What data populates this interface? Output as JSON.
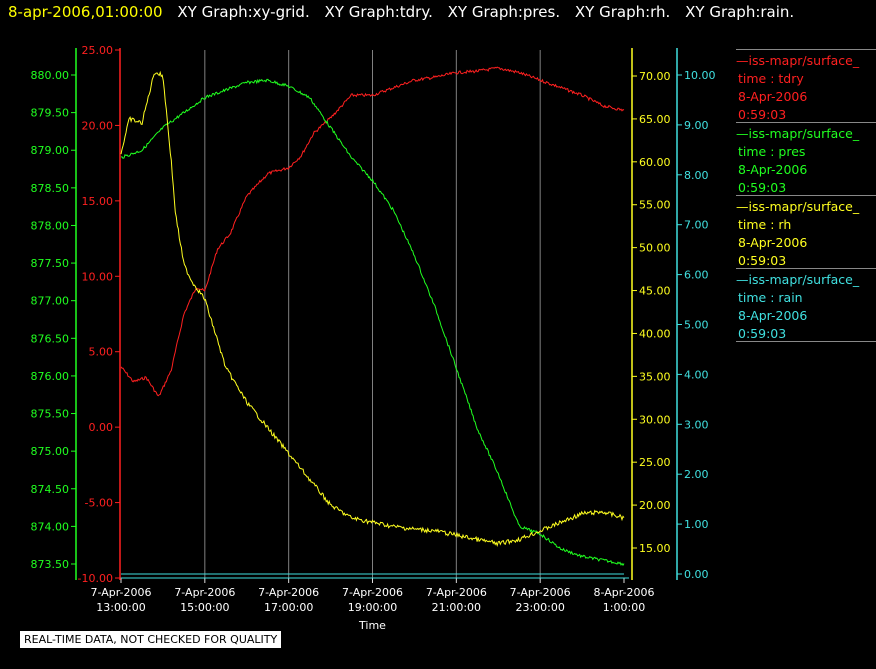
{
  "header": {
    "timestamp": "8-apr-2006,01:00:00",
    "titles": [
      "XY Graph:xy-grid.",
      "XY Graph:tdry.",
      "XY Graph:pres.",
      "XY Graph:rh.",
      "XY Graph:rain."
    ]
  },
  "legend": [
    {
      "name": "—iss-mapr/surface_",
      "field": "time : tdry",
      "date": "8-Apr-2006",
      "time": "0:59:03",
      "color": "#ff2020"
    },
    {
      "name": "—iss-mapr/surface_",
      "field": "time : pres",
      "date": "8-Apr-2006",
      "time": "0:59:03",
      "color": "#20ff20"
    },
    {
      "name": "—iss-mapr/surface_",
      "field": "time : rh",
      "date": "8-Apr-2006",
      "time": "0:59:03",
      "color": "#ffff20"
    },
    {
      "name": "—iss-mapr/surface_",
      "field": "time : rain",
      "date": "8-Apr-2006",
      "time": "0:59:03",
      "color": "#40e0e0"
    }
  ],
  "footer": "REAL-TIME DATA, NOT CHECKED FOR QUALITY",
  "chart_data": {
    "type": "line",
    "xlabel": "Time",
    "x_ticks": [
      [
        "7-Apr-2006",
        "13:00:00"
      ],
      [
        "7-Apr-2006",
        "15:00:00"
      ],
      [
        "7-Apr-2006",
        "17:00:00"
      ],
      [
        "7-Apr-2006",
        "19:00:00"
      ],
      [
        "7-Apr-2006",
        "21:00:00"
      ],
      [
        "7-Apr-2006",
        "23:00:00"
      ],
      [
        "8-Apr-2006",
        "1:00:00"
      ]
    ],
    "xlim": [
      "2006-04-07 13:00",
      "2006-04-08 01:00"
    ],
    "grid": "vertical",
    "axes": {
      "tdry": {
        "color": "#ff2020",
        "ylim": [
          -10,
          25
        ],
        "ticks": [
          "25.00",
          "20.00",
          "15.00",
          "10.00",
          "5.00",
          "0.00",
          "-5.00",
          "-10.00"
        ]
      },
      "pres": {
        "color": "#20ff20",
        "ylim": [
          873.3,
          880.0
        ],
        "ticks": [
          "880.00",
          "879.50",
          "879.00",
          "878.50",
          "878.00",
          "877.50",
          "877.00",
          "876.50",
          "876.00",
          "875.50",
          "875.00",
          "874.50",
          "874.00",
          "873.50"
        ]
      },
      "rh": {
        "color": "#ffff20",
        "ylim": [
          12.5,
          71.0
        ],
        "ticks": [
          "70.00",
          "65.00",
          "60.00",
          "55.00",
          "50.00",
          "45.00",
          "40.00",
          "35.00",
          "30.00",
          "25.00",
          "20.00",
          "15.00"
        ]
      },
      "rain": {
        "color": "#40e0e0",
        "ylim": [
          0,
          10.0
        ],
        "ticks": [
          "10.00",
          "9.00",
          "8.00",
          "7.00",
          "6.00",
          "5.00",
          "4.00",
          "3.00",
          "2.00",
          "1.00",
          "0.00"
        ]
      }
    },
    "series": [
      {
        "name": "tdry",
        "x_hours": [
          13.0,
          13.3,
          13.6,
          13.9,
          14.2,
          14.5,
          14.8,
          15.0,
          15.3,
          15.6,
          16.0,
          16.5,
          17.0,
          17.3,
          17.6,
          18.0,
          18.5,
          19.0,
          19.5,
          20.0,
          20.5,
          21.0,
          21.5,
          22.0,
          22.5,
          23.0,
          23.5,
          24.0,
          24.5,
          25.0
        ],
        "y": [
          4.0,
          3.0,
          3.3,
          2.0,
          3.8,
          7.5,
          9.3,
          9.0,
          11.8,
          12.8,
          15.3,
          16.8,
          17.2,
          18.0,
          19.5,
          20.5,
          22.0,
          22.0,
          22.5,
          23.0,
          23.2,
          23.5,
          23.6,
          23.8,
          23.5,
          23.0,
          22.5,
          22.0,
          21.3,
          21.0
        ]
      },
      {
        "name": "pres",
        "x_hours": [
          13.0,
          13.5,
          14.0,
          14.5,
          15.0,
          15.5,
          16.0,
          16.5,
          17.0,
          17.5,
          18.0,
          18.5,
          19.0,
          19.5,
          20.0,
          20.5,
          21.0,
          21.5,
          22.0,
          22.5,
          23.0,
          23.5,
          24.0,
          24.5,
          25.0
        ],
        "y": [
          878.9,
          879.0,
          879.3,
          879.5,
          879.7,
          879.8,
          879.9,
          879.93,
          879.85,
          879.7,
          879.3,
          878.9,
          878.6,
          878.2,
          877.6,
          876.9,
          876.1,
          875.3,
          874.7,
          874.0,
          873.9,
          873.7,
          873.6,
          873.55,
          873.5
        ]
      },
      {
        "name": "rh",
        "x_hours": [
          13.0,
          13.2,
          13.5,
          13.8,
          14.0,
          14.2,
          14.3,
          14.5,
          14.7,
          15.0,
          15.5,
          16.0,
          16.5,
          17.0,
          17.5,
          18.0,
          18.5,
          19.0,
          19.5,
          20.0,
          20.5,
          21.0,
          21.5,
          22.0,
          22.5,
          23.0,
          23.5,
          24.0,
          24.5,
          25.0
        ],
        "y": [
          61.0,
          65.0,
          64.5,
          70.5,
          70.0,
          60.0,
          54.0,
          48.0,
          46.0,
          44.0,
          36.0,
          32.0,
          29.0,
          26.0,
          23.0,
          20.0,
          18.5,
          18.0,
          17.5,
          17.2,
          17.0,
          16.5,
          16.0,
          15.5,
          16.0,
          17.0,
          18.0,
          19.0,
          19.2,
          18.5
        ]
      },
      {
        "name": "rain",
        "x_hours": [
          13.0,
          25.0
        ],
        "y": [
          0.0,
          0.0
        ]
      }
    ]
  }
}
